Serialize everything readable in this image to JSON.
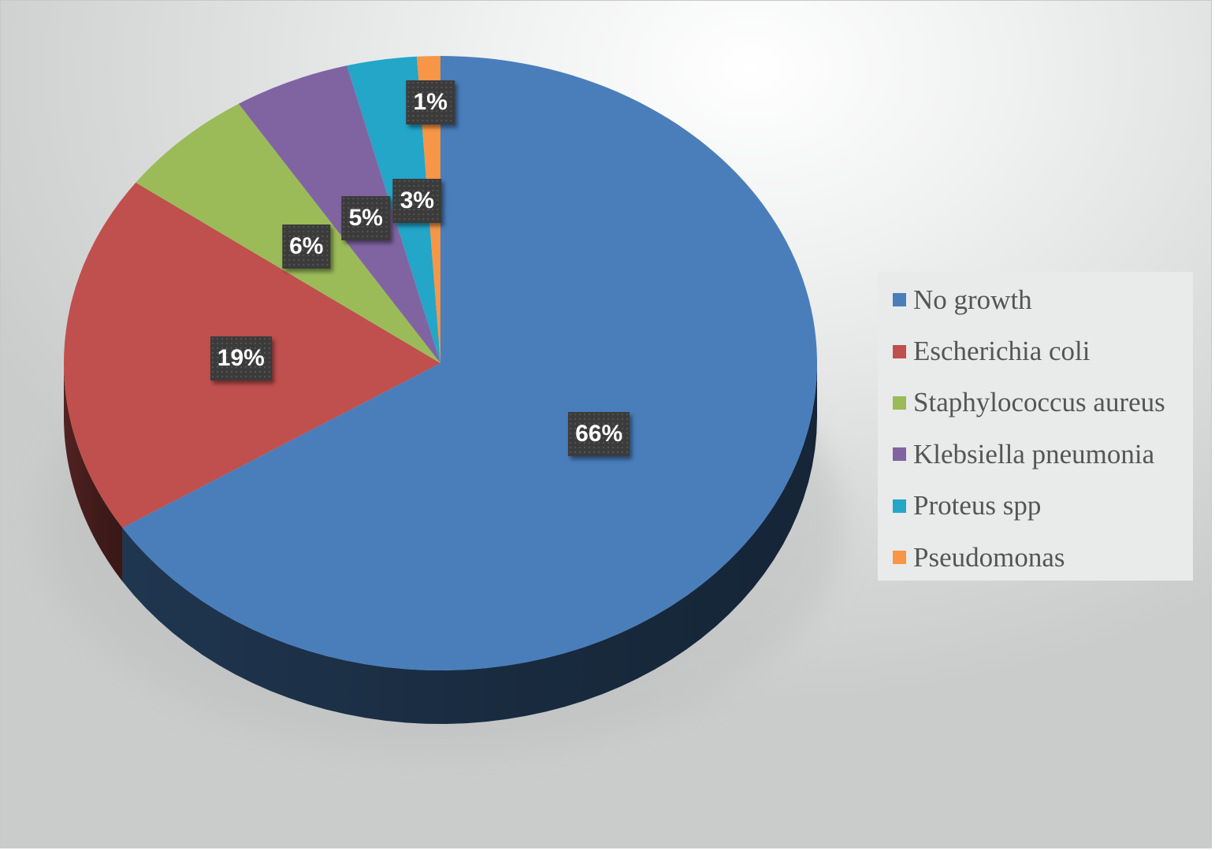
{
  "chart_data": {
    "type": "pie",
    "style": "3d",
    "categories": [
      "No growth",
      "Escherichia coli",
      "Staphylococcus aureus",
      "Klebsiella pneumonia",
      "Proteus spp",
      "Pseudomonas"
    ],
    "values": [
      66,
      19,
      6,
      5,
      3,
      1
    ],
    "value_labels": [
      "66%",
      "19%",
      "6%",
      "5%",
      "3%",
      "1%"
    ],
    "colors": [
      "#4a7ebb",
      "#c0504d",
      "#9bbb59",
      "#8064a2",
      "#23a6c8",
      "#f79646"
    ],
    "legend": "right",
    "title": ""
  }
}
